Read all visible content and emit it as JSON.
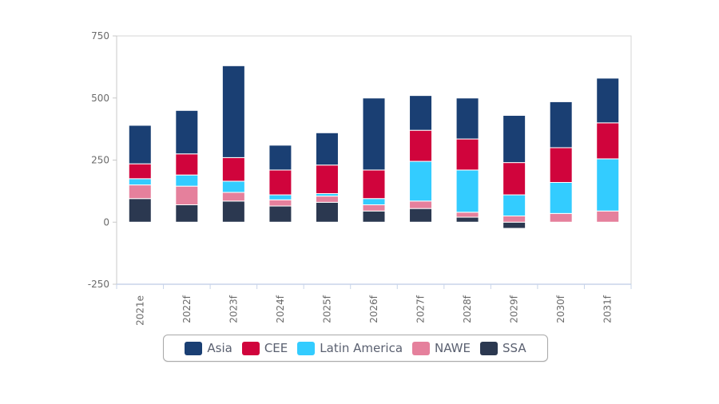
{
  "chart_data": {
    "type": "bar",
    "stacked": true,
    "title": "",
    "xlabel": "",
    "ylabel": "",
    "ylim": [
      -250,
      750
    ],
    "yticks": [
      -250,
      0,
      250,
      500,
      750
    ],
    "grid": false,
    "legend_position": "bottom",
    "categories": [
      "2021e",
      "2022f",
      "2023f",
      "2024f",
      "2025f",
      "2026f",
      "2027f",
      "2028f",
      "2029f",
      "2030f",
      "2031f"
    ],
    "series": [
      {
        "name": "SSA",
        "color": "#2b3850",
        "values": [
          95,
          70,
          85,
          65,
          80,
          45,
          55,
          20,
          -25,
          0,
          0
        ]
      },
      {
        "name": "NAWE",
        "color": "#e5809c",
        "values": [
          55,
          75,
          35,
          25,
          25,
          25,
          30,
          20,
          25,
          35,
          45
        ]
      },
      {
        "name": "Latin America",
        "color": "#33ccff",
        "values": [
          25,
          45,
          45,
          20,
          10,
          25,
          160,
          170,
          85,
          125,
          210
        ]
      },
      {
        "name": "CEE",
        "color": "#d0043c",
        "values": [
          60,
          85,
          95,
          100,
          115,
          115,
          125,
          125,
          130,
          140,
          145
        ]
      },
      {
        "name": "Asia",
        "color": "#1a3f73",
        "values": [
          155,
          175,
          370,
          100,
          130,
          290,
          140,
          165,
          190,
          185,
          180
        ]
      }
    ]
  },
  "legend": {
    "items": [
      {
        "name": "Asia",
        "color": "#1a3f73"
      },
      {
        "name": "CEE",
        "color": "#d0043c"
      },
      {
        "name": "Latin America",
        "color": "#33ccff"
      },
      {
        "name": "NAWE",
        "color": "#e5809c"
      },
      {
        "name": "SSA",
        "color": "#2b3850"
      }
    ]
  }
}
